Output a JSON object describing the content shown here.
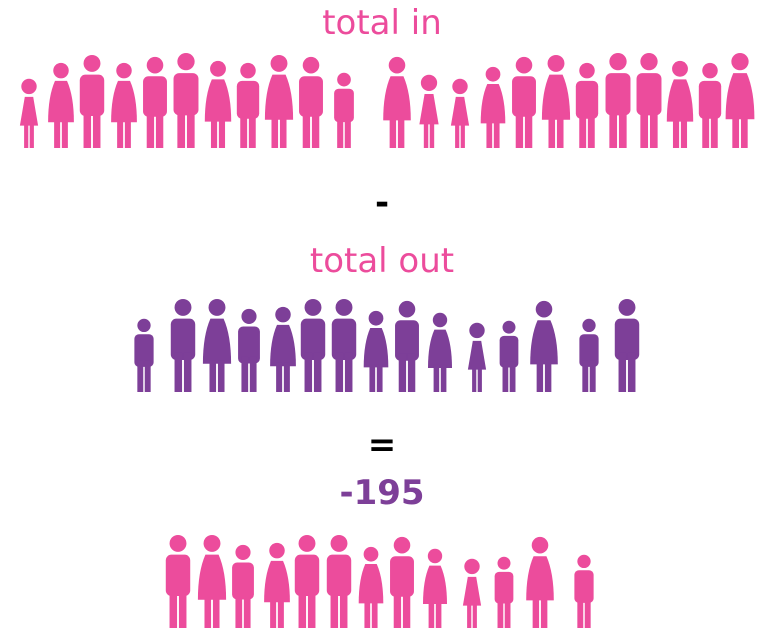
{
  "top_label": "total in",
  "minus": "-",
  "middle_label": "total out",
  "equals": "=",
  "result": "-195"
}
